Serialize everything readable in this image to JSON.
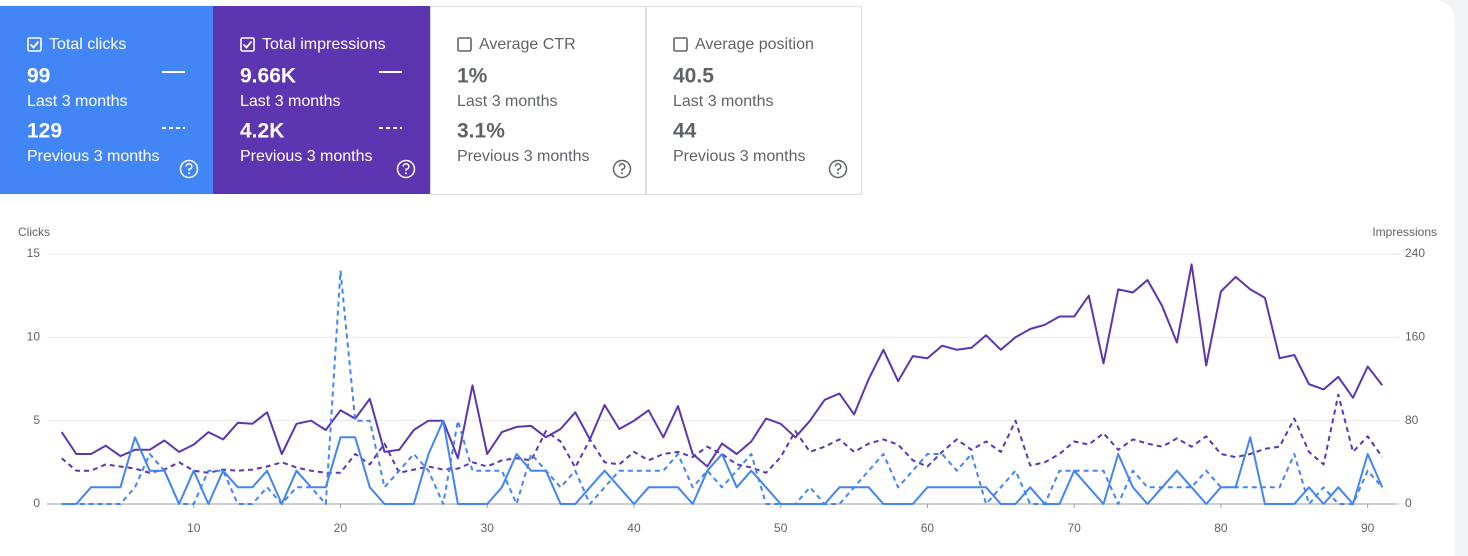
{
  "cards": [
    {
      "label": "Total clicks",
      "checked": true,
      "color": "#4285f4",
      "current": {
        "value": "99",
        "period": "Last 3 months"
      },
      "previous": {
        "value": "129",
        "period": "Previous 3 months"
      }
    },
    {
      "label": "Total impressions",
      "checked": true,
      "color": "#5e35b1",
      "current": {
        "value": "9.66K",
        "period": "Last 3 months"
      },
      "previous": {
        "value": "4.2K",
        "period": "Previous 3 months"
      }
    },
    {
      "label": "Average CTR",
      "checked": false,
      "current": {
        "value": "1%",
        "period": "Last 3 months"
      },
      "previous": {
        "value": "3.1%",
        "period": "Previous 3 months"
      }
    },
    {
      "label": "Average position",
      "checked": false,
      "current": {
        "value": "40.5",
        "period": "Last 3 months"
      },
      "previous": {
        "value": "44",
        "period": "Previous 3 months"
      }
    }
  ],
  "chart_data": {
    "type": "line",
    "ylabel": "Clicks",
    "y2label": "Impressions",
    "x": [
      1,
      2,
      3,
      4,
      5,
      6,
      7,
      8,
      9,
      10,
      11,
      12,
      13,
      14,
      15,
      16,
      17,
      18,
      19,
      20,
      21,
      22,
      23,
      24,
      25,
      26,
      27,
      28,
      29,
      30,
      31,
      32,
      33,
      34,
      35,
      36,
      37,
      38,
      39,
      40,
      41,
      42,
      43,
      44,
      45,
      46,
      47,
      48,
      49,
      50,
      51,
      52,
      53,
      54,
      55,
      56,
      57,
      58,
      59,
      60,
      61,
      62,
      63,
      64,
      65,
      66,
      67,
      68,
      69,
      70,
      71,
      72,
      73,
      74,
      75,
      76,
      77,
      78,
      79,
      80,
      81,
      82,
      83,
      84,
      85,
      86,
      87,
      88,
      89,
      90,
      91
    ],
    "xlim": [
      0,
      92
    ],
    "xticks": [
      10,
      20,
      30,
      40,
      50,
      60,
      70,
      80,
      90
    ],
    "ylim": [
      0,
      15
    ],
    "yticks": [
      0,
      5,
      10,
      15
    ],
    "y2lim": [
      0,
      240
    ],
    "y2ticks": [
      0,
      80,
      160,
      240
    ],
    "grid": true,
    "series": [
      {
        "color": "#4285f4",
        "dashed": false,
        "values": [
          0,
          0,
          1,
          1,
          1,
          4,
          2,
          2,
          0,
          2,
          0,
          2,
          1,
          1,
          2,
          0,
          2,
          1,
          1,
          4,
          4,
          1,
          0,
          0,
          0,
          3,
          5,
          0,
          0,
          0,
          1,
          3,
          2,
          2,
          0,
          0,
          1,
          2,
          1,
          0,
          1,
          1,
          1,
          0,
          2,
          3,
          1,
          2,
          1,
          0,
          0,
          0,
          0,
          1,
          1,
          1,
          0,
          0,
          0,
          1,
          1,
          1,
          1,
          1,
          0,
          0,
          1,
          0,
          0,
          2,
          1,
          0,
          3,
          1,
          0,
          1,
          2,
          1,
          0,
          1,
          1,
          4,
          0,
          0,
          0,
          1,
          0,
          1,
          0,
          3,
          1
        ]
      },
      {
        "color": "#4285f4",
        "dashed": true,
        "values": [
          0,
          0,
          0,
          0,
          0,
          1,
          3,
          2,
          0,
          0,
          2,
          2,
          0,
          0,
          1,
          0,
          1,
          1,
          0,
          14,
          5,
          5,
          1,
          2,
          3,
          2,
          0,
          5,
          2,
          2,
          2,
          0,
          3,
          2,
          1,
          2,
          0,
          1,
          2,
          2,
          2,
          2,
          3,
          1,
          2,
          1,
          2,
          3,
          0,
          0,
          0,
          1,
          0,
          0,
          1,
          2,
          3,
          1,
          2,
          3,
          3,
          2,
          3,
          0,
          1,
          2,
          0,
          0,
          2,
          2,
          2,
          2,
          0,
          2,
          1,
          1,
          1,
          1,
          2,
          1,
          1,
          1,
          1,
          1,
          3,
          0,
          1,
          0,
          0,
          2,
          1
        ]
      },
      {
        "color": "#5e35b1",
        "dashed": false,
        "axis": "y2",
        "values": [
          69,
          48,
          48,
          56,
          46,
          52,
          52,
          61,
          50,
          57,
          69,
          62,
          78,
          77,
          88,
          48,
          77,
          80,
          71,
          90,
          82,
          101,
          50,
          52,
          71,
          80,
          80,
          44,
          114,
          48,
          69,
          74,
          75,
          64,
          72,
          88,
          62,
          95,
          72,
          80,
          90,
          64,
          94,
          48,
          36,
          58,
          48,
          60,
          82,
          77,
          64,
          80,
          100,
          106,
          86,
          120,
          148,
          118,
          142,
          140,
          152,
          148,
          150,
          162,
          148,
          160,
          168,
          172,
          180,
          180,
          200,
          135,
          206,
          203,
          215,
          190,
          155,
          230,
          133,
          204,
          218,
          206,
          198,
          140,
          143,
          115,
          110,
          122,
          102,
          132,
          114
        ]
      },
      {
        "color": "#5e35b1",
        "dashed": true,
        "axis": "y2",
        "values": [
          44,
          32,
          32,
          38,
          36,
          34,
          30,
          33,
          40,
          32,
          30,
          33,
          32,
          33,
          36,
          40,
          35,
          32,
          30,
          30,
          48,
          38,
          58,
          30,
          33,
          36,
          33,
          34,
          40,
          36,
          42,
          44,
          42,
          70,
          60,
          35,
          62,
          40,
          38,
          50,
          42,
          48,
          50,
          45,
          55,
          48,
          38,
          35,
          30,
          45,
          70,
          50,
          55,
          62,
          50,
          58,
          62,
          57,
          42,
          36,
          50,
          62,
          52,
          60,
          50,
          80,
          37,
          40,
          48,
          60,
          57,
          68,
          52,
          62,
          58,
          55,
          63,
          55,
          65,
          48,
          45,
          48,
          53,
          55,
          82,
          50,
          38,
          105,
          50,
          65,
          45
        ]
      }
    ]
  }
}
